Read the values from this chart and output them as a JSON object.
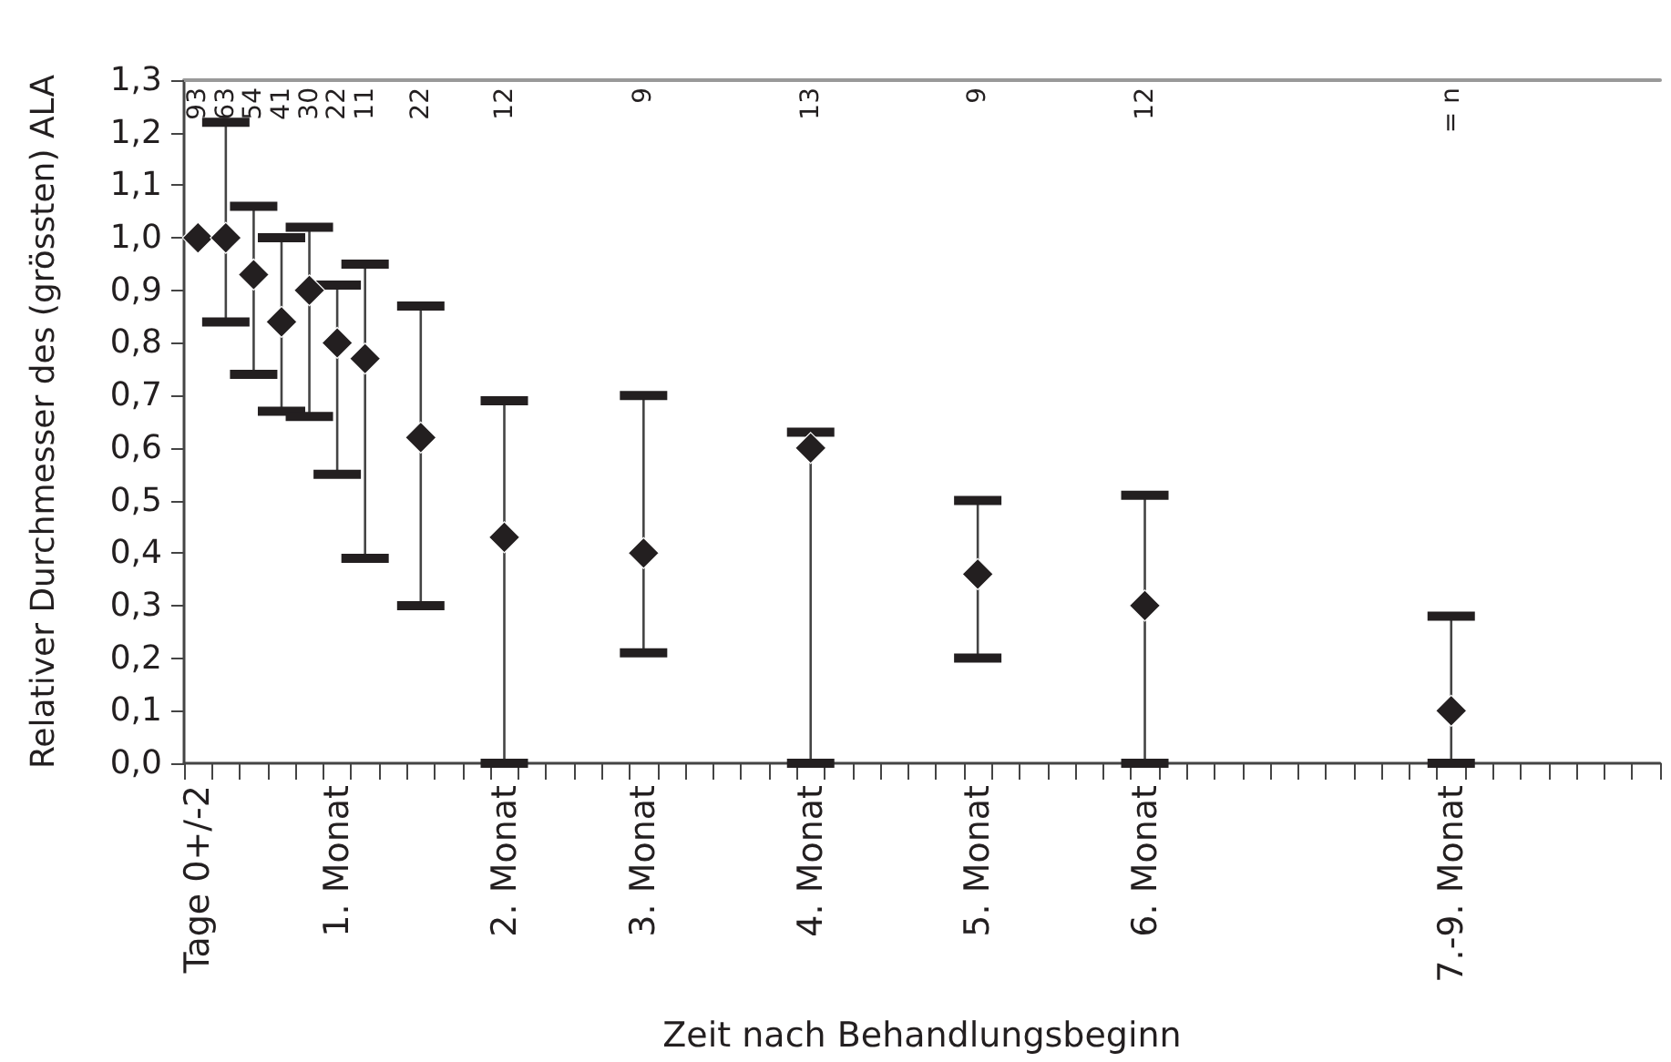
{
  "chart_data": {
    "type": "scatter",
    "xlabel": "Zeit nach Behandlungsbeginn",
    "ylabel": "Relativer Durchmesser des (grössten) ALA",
    "categories": [
      "Tage 0+/-2",
      null,
      null,
      null,
      null,
      "1. Monat",
      null,
      null,
      null,
      null,
      null,
      "2. Monat",
      null,
      null,
      null,
      null,
      "3. Monat",
      null,
      null,
      null,
      null,
      null,
      "4. Monat",
      null,
      null,
      null,
      null,
      null,
      "5. Monat",
      null,
      null,
      null,
      null,
      null,
      "6. Monat",
      null,
      null,
      null,
      null,
      null,
      null,
      null,
      null,
      null,
      null,
      "7.-9. Monat",
      null,
      null,
      null,
      null,
      null,
      null,
      null
    ],
    "series": [
      {
        "color": "#231f20",
        "values": [
          1.0,
          1.0,
          0.93,
          0.84,
          0.9,
          0.8,
          0.77,
          null,
          0.62,
          null,
          null,
          0.43,
          null,
          null,
          null,
          null,
          0.4,
          null,
          null,
          null,
          null,
          null,
          0.6,
          null,
          null,
          null,
          null,
          null,
          0.36,
          null,
          null,
          null,
          null,
          null,
          0.3,
          null,
          null,
          null,
          null,
          null,
          null,
          null,
          null,
          null,
          null,
          0.1,
          null,
          null,
          null,
          null,
          null,
          null,
          null
        ],
        "errors": [
          null,
          [
            0.84,
            1.22
          ],
          [
            0.74,
            1.06
          ],
          [
            0.67,
            1.0
          ],
          [
            0.66,
            1.02
          ],
          [
            0.55,
            0.91
          ],
          [
            0.39,
            0.95
          ],
          null,
          [
            0.3,
            0.87
          ],
          null,
          null,
          [
            0.0,
            0.69
          ],
          null,
          null,
          null,
          null,
          [
            0.21,
            0.7
          ],
          null,
          null,
          null,
          null,
          null,
          [
            0.0,
            0.63
          ],
          null,
          null,
          null,
          null,
          null,
          [
            0.2,
            0.5
          ],
          null,
          null,
          null,
          null,
          null,
          [
            0.0,
            0.51
          ],
          null,
          null,
          null,
          null,
          null,
          null,
          null,
          null,
          null,
          null,
          [
            0.0,
            0.28
          ],
          null,
          null,
          null,
          null,
          null,
          null,
          null
        ]
      }
    ],
    "marker": "diamond",
    "ylim": [
      0,
      1.3
    ],
    "yticks": [
      {
        "value": 0,
        "label": "0,0"
      },
      {
        "value": 0.1,
        "label": "0,1"
      },
      {
        "value": 0.2,
        "label": "0,2"
      },
      {
        "value": 0.3,
        "label": "0,3"
      },
      {
        "value": 0.4,
        "label": "0,4"
      },
      {
        "value": 0.5,
        "label": "0,5"
      },
      {
        "value": 0.6,
        "label": "0,6"
      },
      {
        "value": 0.7,
        "label": "0,7"
      },
      {
        "value": 0.8,
        "label": "0,8"
      },
      {
        "value": 0.9,
        "label": "0,9"
      },
      {
        "value": 1.0,
        "label": "1,0"
      },
      {
        "value": 1.1,
        "label": "1,1"
      },
      {
        "value": 1.2,
        "label": "1,2"
      },
      {
        "value": 1.3,
        "label": "1,3"
      }
    ],
    "annotations": [
      "93",
      "63",
      "54",
      "41",
      "30",
      "22",
      "11",
      "22",
      "12",
      "9",
      "13",
      "9",
      "12",
      "= n"
    ]
  }
}
